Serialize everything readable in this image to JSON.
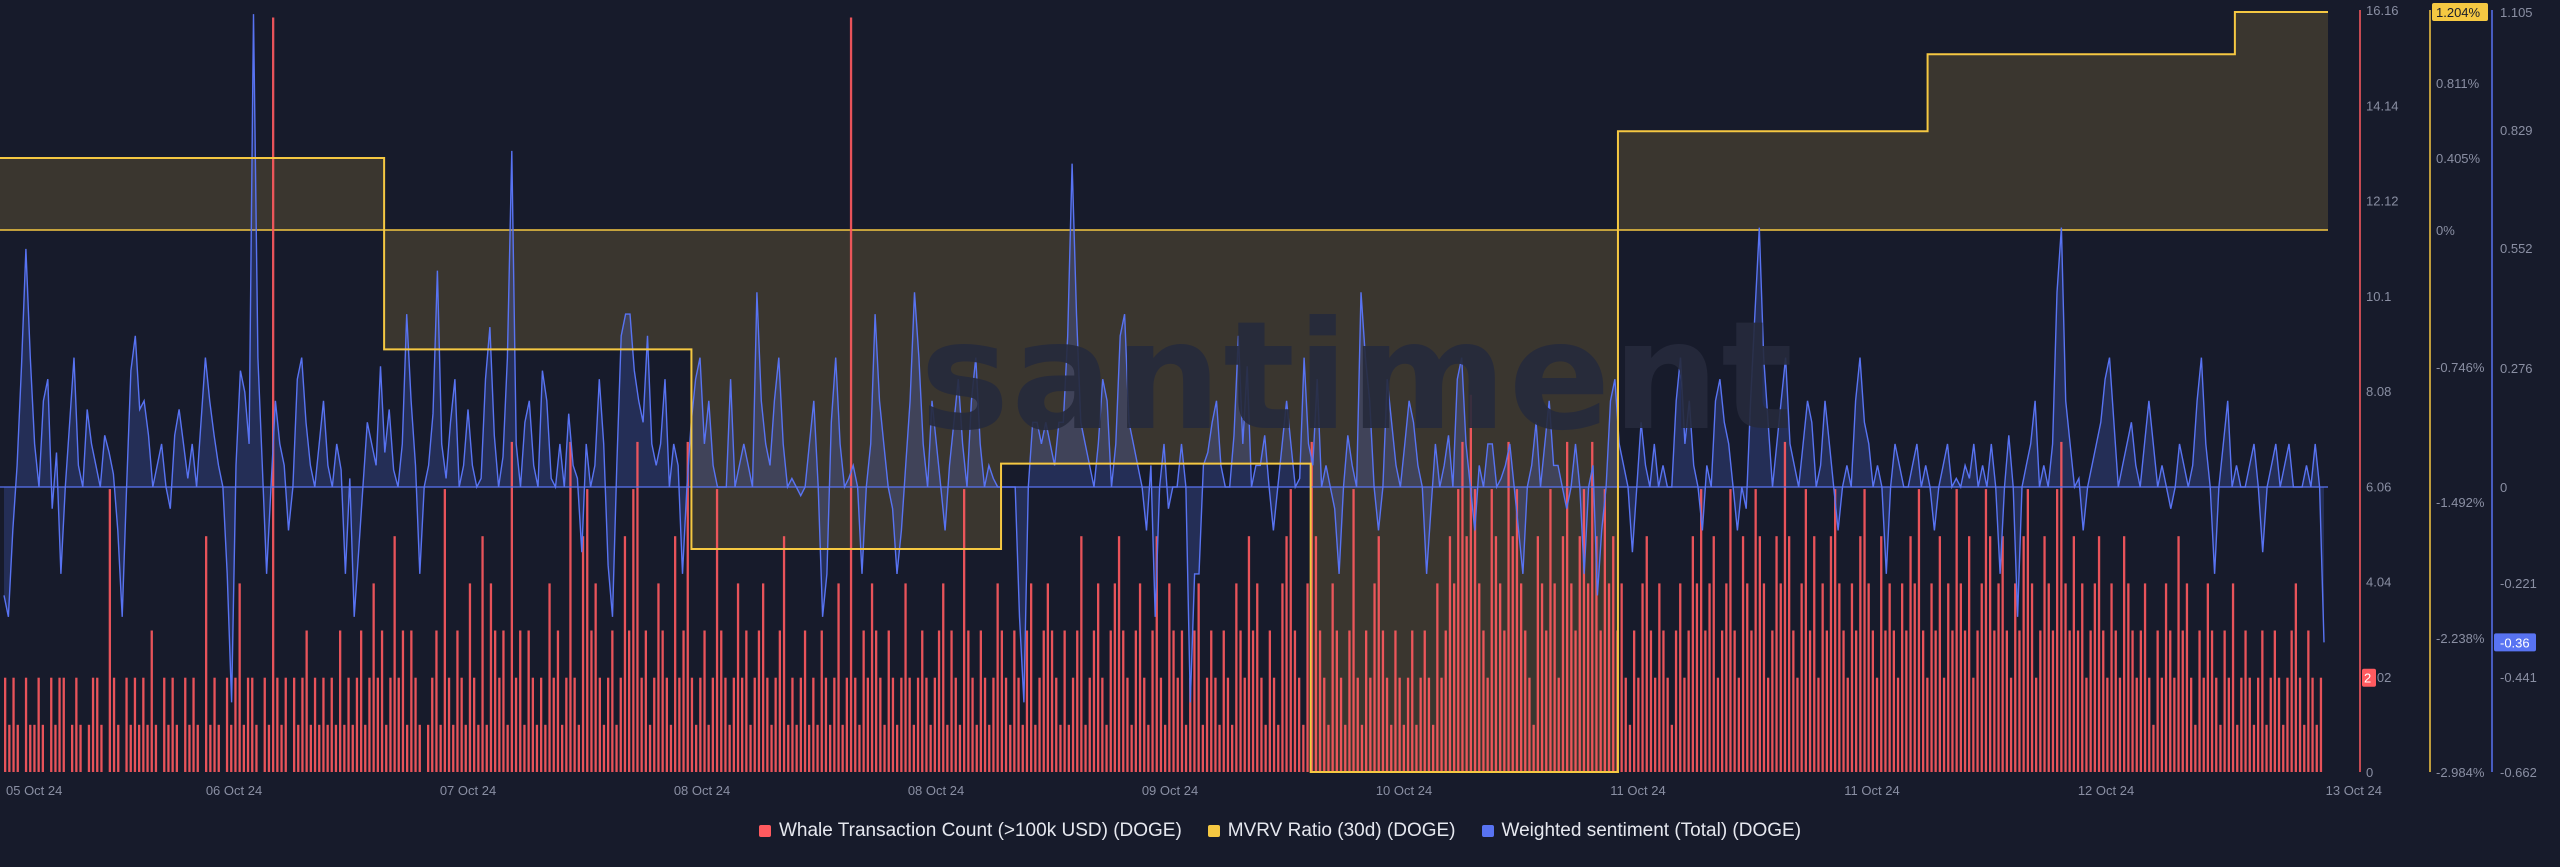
{
  "watermark": "santiment",
  "colors": {
    "background": "#171b2b",
    "whale": "#ff5a5f",
    "mvrv": "#f5c842",
    "sentiment": "#5873f2",
    "grid": "#232839"
  },
  "legend": [
    {
      "label": "Whale Transaction Count (>100k USD) (DOGE)",
      "color": "#ff5a5f"
    },
    {
      "label": "MVRV Ratio (30d) (DOGE)",
      "color": "#f5c842"
    },
    {
      "label": "Weighted sentiment (Total) (DOGE)",
      "color": "#5873f2"
    }
  ],
  "chart_data": {
    "type": "bar",
    "x_range": [
      "05 Oct 24",
      "13 Oct 24"
    ],
    "x_ticks": [
      "05 Oct 24",
      "06 Oct 24",
      "07 Oct 24",
      "08 Oct 24",
      "08 Oct 24",
      "09 Oct 24",
      "10 Oct 24",
      "11 Oct 24",
      "11 Oct 24",
      "12 Oct 24",
      "13 Oct 24"
    ],
    "axes": {
      "whale": {
        "ticks": [
          "16.16",
          "14.14",
          "12.12",
          "10.1",
          "8.08",
          "6.06",
          "4.04",
          "2.02",
          "0"
        ],
        "ylim": [
          0,
          16.16
        ],
        "last_value": "2"
      },
      "mvrv": {
        "ticks": [
          "1.204%",
          "0.811%",
          "0.405%",
          "0%",
          "-0.746%",
          "-1.492%",
          "-2.238%",
          "-2.984%"
        ],
        "last_value": "1.204%"
      },
      "sentiment": {
        "ticks": [
          "1.105",
          "0.829",
          "0.552",
          "0.276",
          "0",
          "-0.221",
          "-0.441",
          "-0.662"
        ],
        "ylim": [
          -0.662,
          1.105
        ],
        "last_value": "-0.36"
      }
    },
    "series": [
      {
        "name": "Whale Transaction Count (>100k USD) (DOGE)",
        "type": "bar",
        "values": [
          2,
          1,
          2,
          1,
          0,
          2,
          1,
          1,
          2,
          1,
          0,
          2,
          1,
          2,
          2,
          0,
          1,
          2,
          1,
          0,
          1,
          2,
          2,
          1,
          0,
          6,
          2,
          1,
          0,
          2,
          1,
          2,
          1,
          2,
          1,
          3,
          1,
          0,
          2,
          1,
          2,
          1,
          0,
          2,
          1,
          2,
          1,
          0,
          5,
          1,
          2,
          1,
          0,
          2,
          1,
          2,
          4,
          1,
          2,
          2,
          1,
          0,
          2,
          1,
          16,
          2,
          1,
          2,
          0,
          2,
          1,
          2,
          3,
          1,
          2,
          1,
          2,
          1,
          2,
          1,
          3,
          1,
          2,
          1,
          2,
          3,
          1,
          2,
          4,
          2,
          3,
          1,
          2,
          5,
          2,
          3,
          1,
          3,
          2,
          1,
          0,
          1,
          2,
          3,
          1,
          6,
          2,
          1,
          3,
          2,
          1,
          4,
          2,
          1,
          5,
          1,
          4,
          3,
          2,
          3,
          1,
          7,
          2,
          3,
          1,
          3,
          2,
          1,
          2,
          1,
          4,
          2,
          3,
          1,
          2,
          7,
          2,
          1,
          5,
          6,
          3,
          4,
          2,
          1,
          2,
          3,
          1,
          2,
          5,
          3,
          6,
          7,
          2,
          3,
          1,
          2,
          4,
          3,
          2,
          1,
          5,
          2,
          3,
          7,
          2,
          1,
          2,
          3,
          1,
          2,
          6,
          3,
          2,
          1,
          2,
          4,
          2,
          3,
          1,
          2,
          3,
          4,
          2,
          1,
          2,
          3,
          5,
          1,
          2,
          1,
          2,
          3,
          1,
          2,
          1,
          3,
          2,
          1,
          2,
          4,
          1,
          2,
          16,
          2,
          1,
          3,
          2,
          4,
          3,
          2,
          1,
          3,
          2,
          1,
          2,
          4,
          2,
          1,
          2,
          3,
          2,
          1,
          2,
          3,
          4,
          1,
          3,
          2,
          1,
          6,
          3,
          2,
          1,
          3,
          2,
          1,
          2,
          4,
          3,
          2,
          1,
          3,
          2,
          1,
          3,
          4,
          1,
          2,
          3,
          4,
          3,
          2,
          1,
          3,
          1,
          2,
          3,
          5,
          1,
          2,
          3,
          4,
          2,
          1,
          3,
          4,
          5,
          3,
          2,
          1,
          3,
          4,
          2,
          1,
          3,
          5,
          2,
          1,
          4,
          3,
          2,
          3,
          1,
          2,
          3,
          4,
          1,
          2,
          3,
          2,
          1,
          3,
          2,
          1,
          4,
          3,
          2,
          5,
          3,
          4,
          2,
          1,
          3,
          2,
          1,
          4,
          5,
          6,
          3,
          2,
          1,
          4,
          7,
          5,
          3,
          2,
          1,
          4,
          3,
          2,
          1,
          3,
          6,
          2,
          1,
          3,
          2,
          4,
          5,
          3,
          2,
          1,
          3,
          2,
          1,
          2,
          3,
          1,
          2,
          3,
          2,
          1,
          4,
          2,
          3,
          5,
          4,
          6,
          7,
          5,
          8,
          6,
          4,
          3,
          2,
          6,
          5,
          4,
          3,
          7,
          5,
          6,
          4,
          3,
          2,
          1,
          5,
          4,
          3,
          6,
          4,
          2,
          5,
          7,
          4,
          3,
          5,
          6,
          4,
          7,
          5,
          3,
          6,
          4,
          5,
          3,
          4,
          2,
          1,
          3,
          2,
          4,
          5,
          3,
          2,
          4,
          3,
          2,
          1,
          3,
          4,
          2,
          3,
          5,
          4,
          6,
          3,
          4,
          5,
          2,
          3,
          4,
          6,
          3,
          2,
          5,
          4,
          3,
          6,
          5,
          4,
          2,
          3,
          5,
          4,
          7,
          5,
          3,
          2,
          4,
          6,
          3,
          5,
          2,
          4,
          3,
          5,
          6,
          4,
          3,
          2,
          4,
          3,
          5,
          6,
          4,
          3,
          2,
          5,
          3,
          4,
          3,
          2,
          4,
          3,
          5,
          4,
          6,
          3,
          2,
          4,
          3,
          5,
          2,
          4,
          3,
          6,
          4,
          3,
          5,
          2,
          3,
          4,
          6,
          5,
          3,
          4,
          5,
          3,
          2,
          4,
          3,
          5,
          6,
          4,
          2,
          3,
          5,
          4,
          3,
          6,
          7,
          4,
          3,
          5,
          3,
          4,
          2,
          3,
          4,
          5,
          3,
          2,
          4,
          3,
          2,
          5,
          4,
          3,
          2,
          3,
          4,
          2,
          1,
          3,
          2,
          4,
          3,
          2,
          5,
          3,
          4,
          2,
          1,
          3,
          2,
          4,
          3,
          2,
          1,
          3,
          2,
          4,
          1,
          2,
          3,
          2,
          1,
          2,
          3,
          1,
          2,
          3,
          2,
          1,
          2,
          3,
          4,
          2,
          1,
          3,
          2,
          1,
          2
        ]
      },
      {
        "name": "MVRV Ratio (30d) (DOGE)",
        "type": "step-area",
        "baseline": "0%",
        "x_fraction": [
          0,
          0.165,
          0.165,
          0.297,
          0.297,
          0.43,
          0.43,
          0.563,
          0.563,
          0.695,
          0.695,
          0.828,
          0.828,
          0.96,
          0.96,
          1
        ],
        "values_percent": [
          0.405,
          0.405,
          -0.65,
          -0.65,
          -1.75,
          -1.75,
          -1.28,
          -1.28,
          -2.984,
          -2.984,
          0.55,
          0.55,
          0.97,
          0.97,
          1.204,
          1.204
        ]
      },
      {
        "name": "Weighted sentiment (Total) (DOGE)",
        "type": "area",
        "values": [
          -0.25,
          -0.3,
          -0.1,
          0.05,
          0.28,
          0.55,
          0.3,
          0.1,
          0.0,
          0.2,
          0.25,
          -0.05,
          0.08,
          -0.2,
          0.0,
          0.15,
          0.3,
          0.05,
          0.0,
          0.18,
          0.1,
          0.05,
          0.0,
          0.12,
          0.08,
          0.03,
          -0.1,
          -0.3,
          0.0,
          0.27,
          0.35,
          0.18,
          0.2,
          0.12,
          0.0,
          0.05,
          0.1,
          0.0,
          -0.05,
          0.12,
          0.18,
          0.1,
          0.02,
          0.1,
          0.0,
          0.15,
          0.3,
          0.2,
          0.12,
          0.05,
          0.0,
          -0.2,
          -0.5,
          0.05,
          0.27,
          0.22,
          0.1,
          1.1,
          0.3,
          0.05,
          -0.2,
          0.0,
          0.2,
          0.1,
          0.05,
          -0.1,
          0.0,
          0.25,
          0.3,
          0.15,
          0.05,
          0.0,
          0.1,
          0.2,
          0.05,
          0.0,
          0.1,
          0.04,
          -0.2,
          0.02,
          -0.3,
          -0.15,
          0.0,
          0.15,
          0.1,
          0.05,
          0.28,
          0.08,
          0.18,
          0.04,
          0.0,
          0.1,
          0.4,
          0.2,
          0.05,
          -0.2,
          0.0,
          0.05,
          0.17,
          0.5,
          0.1,
          0.02,
          0.15,
          0.25,
          0.0,
          0.05,
          0.18,
          0.05,
          0.0,
          0.02,
          0.25,
          0.37,
          0.12,
          0.0,
          0.07,
          0.3,
          0.78,
          0.1,
          0.0,
          0.15,
          0.2,
          0.05,
          0.0,
          0.27,
          0.2,
          0.02,
          0.0,
          0.1,
          0.0,
          0.17,
          0.05,
          0.02,
          -0.15,
          0.1,
          0.0,
          0.05,
          0.25,
          0.1,
          -0.18,
          -0.3,
          0.05,
          0.35,
          0.4,
          0.4,
          0.27,
          0.2,
          0.15,
          0.35,
          0.1,
          0.05,
          0.1,
          0.25,
          0.0,
          0.1,
          0.05,
          -0.2,
          0.0,
          0.15,
          0.25,
          0.3,
          0.1,
          0.2,
          0.05,
          0.0,
          0.0,
          0.0,
          0.25,
          0.0,
          0.05,
          0.1,
          0.05,
          0.0,
          0.45,
          0.2,
          0.1,
          0.05,
          0.2,
          0.3,
          0.1,
          0.0,
          0.02,
          0.0,
          -0.02,
          0.0,
          0.1,
          0.2,
          0.0,
          -0.3,
          -0.2,
          0.15,
          0.3,
          0.1,
          0.0,
          0.02,
          0.05,
          0.0,
          -0.2,
          0.0,
          0.1,
          0.4,
          0.2,
          0.1,
          0.0,
          -0.05,
          -0.2,
          -0.1,
          0.05,
          0.2,
          0.45,
          0.3,
          0.1,
          0.0,
          0.2,
          0.1,
          0.0,
          -0.1,
          0.05,
          0.15,
          0.25,
          0.1,
          0.0,
          0.2,
          0.3,
          0.1,
          0.0,
          0.05,
          0.02,
          0.0,
          0.0,
          0.0,
          0.0,
          0.0,
          -0.3,
          -0.5,
          0.0,
          0.15,
          0.15,
          0.1,
          0.15,
          0.1,
          0.05,
          0.15,
          0.15,
          0.35,
          0.75,
          0.4,
          0.15,
          0.1,
          0.05,
          0.0,
          0.1,
          0.25,
          0.2,
          0.0,
          0.1,
          0.35,
          0.4,
          0.15,
          0.1,
          0.05,
          0.0,
          -0.1,
          0.05,
          -0.3,
          0.0,
          0.1,
          -0.05,
          0.0,
          0.0,
          0.1,
          0.0,
          -0.5,
          -0.2,
          -0.2,
          0.05,
          0.08,
          0.15,
          0.2,
          0.05,
          0.0,
          0.0,
          0.12,
          0.35,
          0.1,
          0.28,
          0.0,
          0.05,
          0.05,
          0.12,
          0.0,
          -0.1,
          0.0,
          0.1,
          0.2,
          0.1,
          0.0,
          0.02,
          0.3,
          0.1,
          0.05,
          0.25,
          0.0,
          0.05,
          0.0,
          -0.05,
          -0.2,
          0.0,
          0.12,
          0.05,
          0.0,
          0.45,
          0.3,
          0.2,
          0.0,
          -0.1,
          0.0,
          0.25,
          0.15,
          0.05,
          0.0,
          0.1,
          0.2,
          0.15,
          0.05,
          0.0,
          -0.2,
          -0.05,
          0.1,
          0.0,
          0.05,
          0.12,
          0.0,
          0.25,
          0.3,
          0.1,
          0.0,
          -0.1,
          0.05,
          0.0,
          0.1,
          0.1,
          0.0,
          0.02,
          0.05,
          0.1,
          0.0,
          -0.1,
          -0.2,
          0.0,
          0.05,
          0.15,
          0.0,
          0.1,
          0.2,
          0.05,
          0.05,
          0.0,
          -0.05,
          0.0,
          0.1,
          0.0,
          -0.2,
          0.0,
          0.05,
          -0.25,
          -0.1,
          0.0,
          0.2,
          0.25,
          0.1,
          0.05,
          0.0,
          -0.15,
          0.0,
          0.15,
          0.05,
          0.0,
          0.1,
          0.0,
          0.05,
          0.0,
          0.0,
          0.2,
          0.3,
          0.1,
          0.2,
          0.05,
          0.0,
          -0.1,
          0.05,
          0.0,
          0.2,
          0.25,
          0.15,
          0.1,
          0.0,
          -0.1,
          0.0,
          -0.05,
          0.2,
          0.4,
          0.6,
          0.3,
          0.15,
          0.0,
          0.1,
          0.2,
          0.3,
          0.1,
          0.05,
          0.0,
          0.1,
          0.2,
          0.15,
          0.0,
          0.05,
          0.2,
          0.1,
          0.0,
          -0.1,
          0.0,
          0.05,
          0.0,
          0.2,
          0.3,
          0.15,
          0.1,
          0.0,
          0.05,
          0.0,
          -0.2,
          0.0,
          0.1,
          0.05,
          0.0,
          0.0,
          0.05,
          0.1,
          0.0,
          0.05,
          0.0,
          -0.1,
          0.0,
          0.05,
          0.1,
          0.0,
          0.02,
          0.0,
          0.05,
          0.02,
          0.1,
          0.0,
          0.05,
          0.0,
          0.1,
          0.0,
          -0.2,
          0.0,
          0.12,
          0.0,
          -0.3,
          0.0,
          0.05,
          0.1,
          0.2,
          0.0,
          0.05,
          0.0,
          0.1,
          0.45,
          0.6,
          0.2,
          0.1,
          0.0,
          0.02,
          -0.1,
          0.0,
          0.05,
          0.1,
          0.15,
          0.25,
          0.3,
          0.15,
          0.0,
          0.05,
          0.1,
          0.15,
          0.05,
          0.0,
          0.1,
          0.2,
          0.1,
          0.0,
          0.05,
          0.0,
          -0.05,
          0.0,
          0.1,
          0.05,
          0.0,
          0.05,
          0.2,
          0.3,
          0.1,
          0.0,
          -0.2,
          0.0,
          0.1,
          0.2,
          0.0,
          0.05,
          0.0,
          0.0,
          0.05,
          0.1,
          0.0,
          -0.15,
          0.0,
          0.05,
          0.1,
          0.0,
          0.05,
          0.1,
          0.0,
          0.0,
          0.0,
          0.05,
          0.0,
          0.1,
          0.0,
          -0.36
        ]
      }
    ]
  }
}
